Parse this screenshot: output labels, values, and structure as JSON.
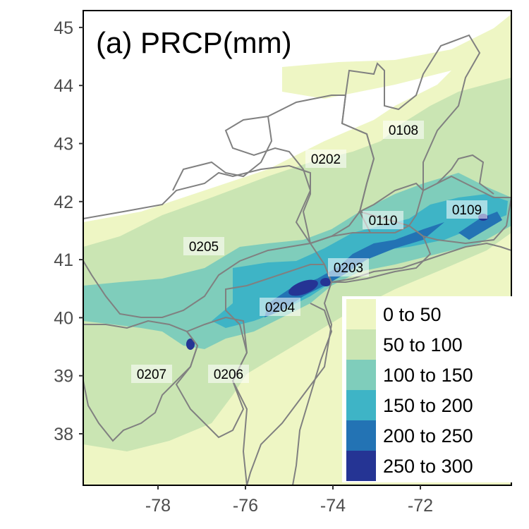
{
  "title": "(a) PRCP(mm)",
  "x_ticks": [
    "-78",
    "-76",
    "-74",
    "-72"
  ],
  "y_ticks": [
    "38",
    "39",
    "40",
    "41",
    "42",
    "43",
    "44",
    "45"
  ],
  "regions": [
    "0108",
    "0202",
    "0110",
    "0109",
    "0205",
    "0203",
    "0204",
    "0207",
    "0206"
  ],
  "legend": [
    {
      "label": "0 to 50",
      "color": "#eef6c4"
    },
    {
      "label": "50 to 100",
      "color": "#cae5b3"
    },
    {
      "label": "100 to 150",
      "color": "#7fcdbb"
    },
    {
      "label": "150 to 200",
      "color": "#3eb4c6"
    },
    {
      "label": "200 to 250",
      "color": "#2373b4"
    },
    {
      "label": "250 to 300",
      "color": "#253494"
    }
  ]
}
